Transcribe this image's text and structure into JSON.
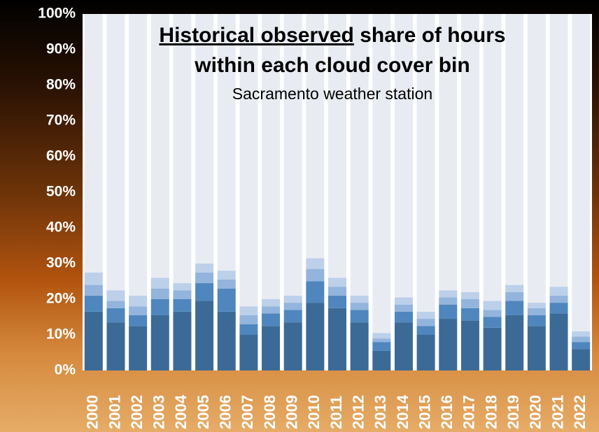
{
  "chart_data": {
    "type": "stacked_bar",
    "title_underlined": "Historical observed",
    "title_rest": "share of hours",
    "title_line2": "within each cloud cover bin",
    "subtitle": "Sacramento weather station",
    "categories": [
      "2000",
      "2001",
      "2002",
      "2003",
      "2004",
      "2005",
      "2006",
      "2007",
      "2008",
      "2009",
      "2010",
      "2011",
      "2012",
      "2013",
      "2014",
      "2015",
      "2016",
      "2017",
      "2018",
      "2019",
      "2020",
      "2021",
      "2022"
    ],
    "series": [
      {
        "color": "#3c6a96",
        "values": [
          16.5,
          13.5,
          12.5,
          15.5,
          16.5,
          19.5,
          16.5,
          10,
          12.5,
          13.5,
          19,
          17.5,
          13.5,
          5.5,
          13.5,
          10,
          14.5,
          14,
          12,
          15.5,
          12.5,
          16,
          6
        ]
      },
      {
        "color": "#4f86bd",
        "values": [
          4.5,
          4,
          3,
          4.5,
          3.5,
          5,
          6.5,
          3,
          3.5,
          3.5,
          6,
          3.5,
          3.5,
          2.5,
          3,
          2.5,
          4,
          3.5,
          3,
          4,
          3,
          3,
          2
        ]
      },
      {
        "color": "#93b4dc",
        "values": [
          3,
          2,
          2.5,
          3,
          2.5,
          3,
          2.5,
          2.5,
          2,
          2,
          3.5,
          2.5,
          2,
          1,
          2,
          2,
          2,
          2.5,
          2,
          2.5,
          2,
          2,
          1.5
        ]
      },
      {
        "color": "#bcd0ea",
        "values": [
          3.5,
          3,
          3,
          3,
          2,
          2.5,
          2.5,
          2.5,
          2,
          2,
          3,
          2.5,
          2,
          1.5,
          2,
          2,
          2,
          2,
          2.5,
          2,
          1.5,
          2.5,
          1.5
        ]
      },
      {
        "color": "#e8ecf2",
        "values": [
          72.5,
          77.5,
          79,
          74,
          75.5,
          70,
          72,
          82,
          80,
          79,
          68.5,
          74,
          79,
          89.5,
          79.5,
          83.5,
          77.5,
          78,
          80.5,
          76,
          81,
          76.5,
          89
        ]
      }
    ],
    "ylim": [
      0,
      100
    ],
    "yticks": [
      {
        "value": 0,
        "label": "0%"
      },
      {
        "value": 10,
        "label": "10%"
      },
      {
        "value": 20,
        "label": "20%"
      },
      {
        "value": 30,
        "label": "30%"
      },
      {
        "value": 40,
        "label": "40%"
      },
      {
        "value": 50,
        "label": "50%"
      },
      {
        "value": 60,
        "label": "60%"
      },
      {
        "value": 70,
        "label": "70%"
      },
      {
        "value": 80,
        "label": "80%"
      },
      {
        "value": 90,
        "label": "90%"
      },
      {
        "value": 100,
        "label": "100%"
      }
    ]
  }
}
